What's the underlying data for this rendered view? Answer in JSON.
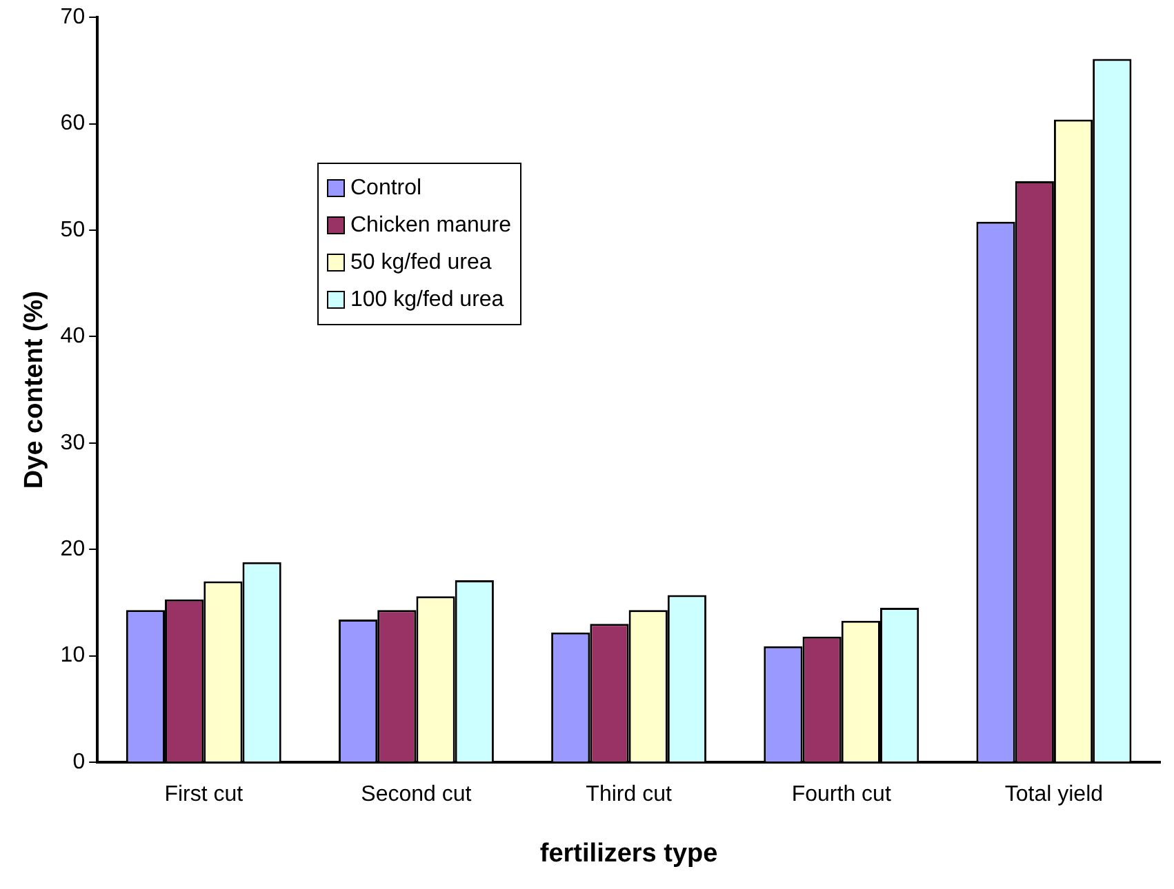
{
  "chart_data": {
    "type": "bar",
    "xlabel": "fertilizers type",
    "ylabel": "Dye content (%)",
    "categories": [
      "First cut",
      "Second cut",
      "Third cut",
      "Fourth cut",
      "Total yield"
    ],
    "series": [
      {
        "name": "Control",
        "color": "#9999ff",
        "values": [
          14.3,
          13.4,
          12.2,
          10.9,
          50.8
        ]
      },
      {
        "name": "Chicken manure",
        "color": "#993366",
        "values": [
          15.3,
          14.3,
          13.0,
          11.8,
          54.6
        ]
      },
      {
        "name": "50 kg/fed urea",
        "color": "#ffffcc",
        "values": [
          17.0,
          15.6,
          14.3,
          13.3,
          60.4
        ]
      },
      {
        "name": "100 kg/fed urea",
        "color": "#ccffff",
        "values": [
          18.8,
          17.1,
          15.7,
          14.5,
          66.1
        ]
      }
    ],
    "ylim": [
      0,
      70
    ],
    "yticks": [
      0,
      10,
      20,
      30,
      40,
      50,
      60,
      70
    ],
    "grid": false,
    "legend": "top left"
  }
}
